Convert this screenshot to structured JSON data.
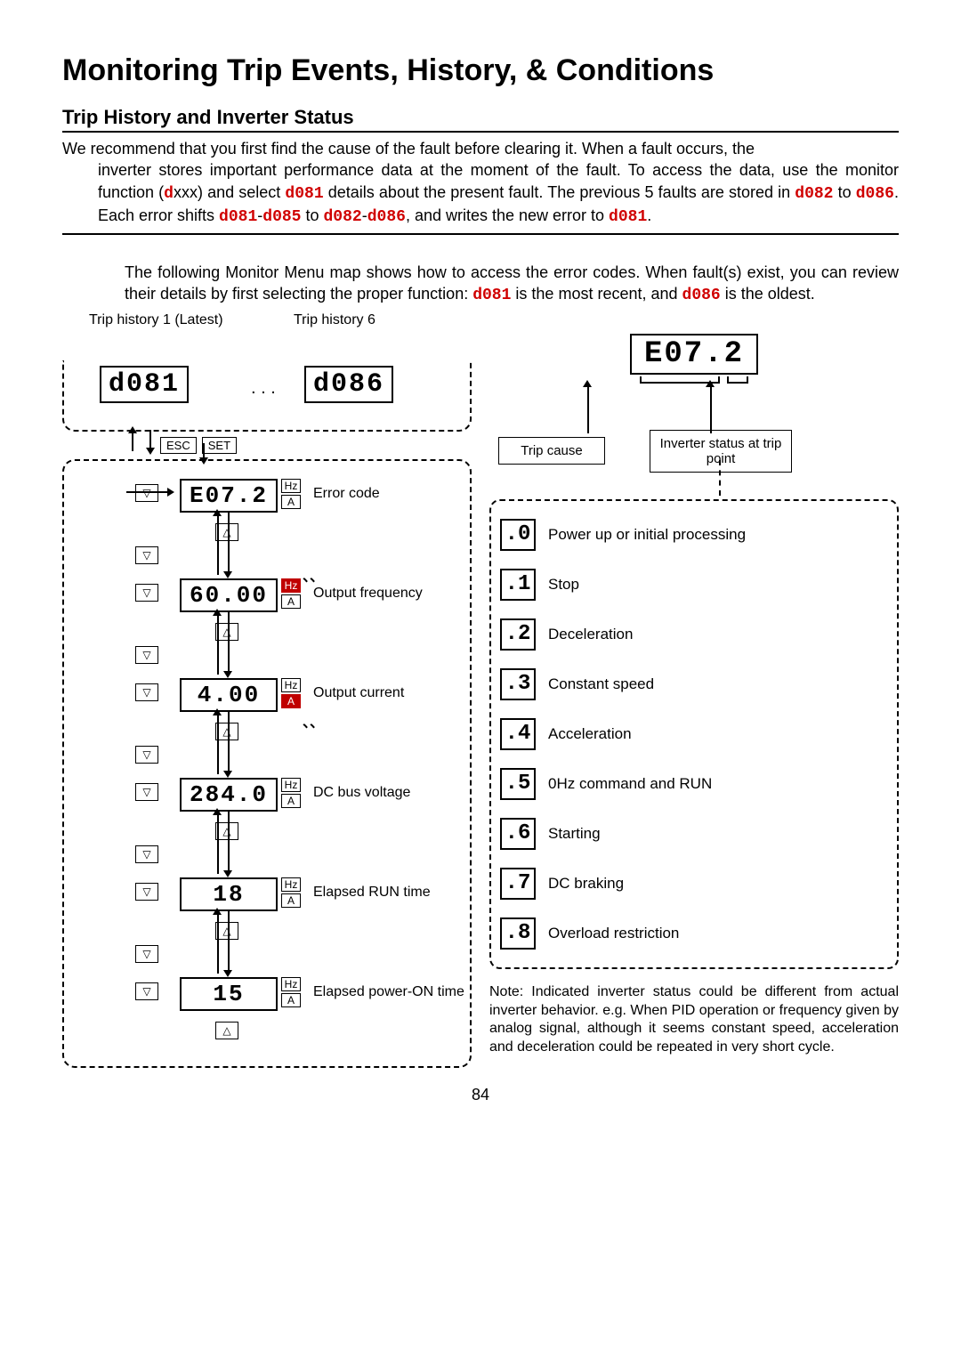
{
  "title": "Monitoring Trip Events, History, & Conditions",
  "subtitle": "Trip History and Inverter Status",
  "para1_start": "We recommend that you first find the cause of the fault before clearing it. When a fault occurs, the",
  "para1_rest": "inverter stores important performance data at the moment of the fault. To access the data, use the monitor function (",
  "p1_dxxx_d": "d",
  "p1_dxxx_rest": "xxx) and select ",
  "p1_d081": "d081",
  "p1_after_d081": " details about the present fault. The previous 5 faults are stored in ",
  "p1_d082": "d082",
  "p1_to": " to ",
  "p1_d086": "d086",
  "p1_shift": ". Each error shifts ",
  "p1_d081b": "d081",
  "p1_dash": "-",
  "p1_d085": "d085",
  "p1_to2": " to ",
  "p1_d082b": "d082",
  "p1_dash2": "-",
  "p1_d086b": "d086",
  "p1_end": ", and writes the new error to ",
  "p1_d081c": "d081",
  "p1_period": ".",
  "para2_a": "The following Monitor Menu map shows how to access the error codes. When fault(s) exist, you can review their details by first selecting the proper function: ",
  "p2_d081": "d081",
  "p2_mid": " is the most recent, and ",
  "p2_d086": "d086",
  "p2_end": " is the oldest.",
  "hist_label1": "Trip history 1 (Latest)",
  "hist_label6": "Trip history 6",
  "seg_d081": "d081",
  "seg_d086": "d086",
  "dots": ". . .",
  "btn_esc": "ESC",
  "btn_set": "SET",
  "steps": [
    {
      "val": "E07.2",
      "label": "Error code",
      "hz_hl": false,
      "a_hl": false,
      "blink": ""
    },
    {
      "val": "60.00",
      "label": "Output frequency",
      "hz_hl": true,
      "a_hl": false,
      "blink": "top"
    },
    {
      "val": "4.00",
      "label": "Output current",
      "hz_hl": false,
      "a_hl": true,
      "blink": "bottom"
    },
    {
      "val": "284.0",
      "label": "DC bus voltage",
      "hz_hl": false,
      "a_hl": false,
      "blink": ""
    },
    {
      "val": "18",
      "label": "Elapsed RUN time",
      "hz_hl": false,
      "a_hl": false,
      "blink": ""
    },
    {
      "val": "15",
      "label": "Elapsed power-ON time",
      "hz_hl": false,
      "a_hl": false,
      "blink": ""
    }
  ],
  "unit_hz": "Hz",
  "unit_a": "A",
  "right_seg": "E07.2",
  "trip_cause": "Trip cause",
  "inv_status": "Inverter status at trip point",
  "statuses": [
    {
      "code": ".0",
      "label": "Power up or initial processing"
    },
    {
      "code": ".1",
      "label": "Stop"
    },
    {
      "code": ".2",
      "label": "Deceleration"
    },
    {
      "code": ".3",
      "label": "Constant speed"
    },
    {
      "code": ".4",
      "label": "Acceleration"
    },
    {
      "code": ".5",
      "label": "0Hz command and RUN"
    },
    {
      "code": ".6",
      "label": "Starting"
    },
    {
      "code": ".7",
      "label": "DC braking"
    },
    {
      "code": ".8",
      "label": "Overload restriction"
    }
  ],
  "note": "Note: Indicated inverter status could be different from actual inverter behavior.\ne.g. When PID operation or frequency given by analog signal, although it seems constant speed, acceleration and deceleration could be repeated in very short cycle.",
  "page_num": "84"
}
